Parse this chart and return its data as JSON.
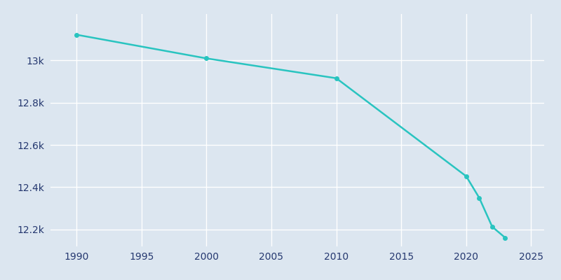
{
  "years": [
    1990,
    2000,
    2010,
    2020,
    2021,
    2022,
    2023
  ],
  "population": [
    13122,
    13010,
    12916,
    12452,
    12350,
    12213,
    12161
  ],
  "line_color": "#29c4c0",
  "marker_color": "#29c4c0",
  "bg_color": "#dce6f0",
  "plot_bg_color": "#dce6f0",
  "grid_color": "#ffffff",
  "tick_color": "#253870",
  "xlim": [
    1988,
    2026
  ],
  "ylim": [
    12120,
    13220
  ],
  "yticks": [
    12200,
    12400,
    12600,
    12800,
    13000
  ],
  "ytick_labels": [
    "12.2k",
    "12.4k",
    "12.6k",
    "12.8k",
    "13k"
  ],
  "xticks": [
    1990,
    1995,
    2000,
    2005,
    2010,
    2015,
    2020,
    2025
  ],
  "figwidth": 8.0,
  "figheight": 4.0,
  "dpi": 100
}
